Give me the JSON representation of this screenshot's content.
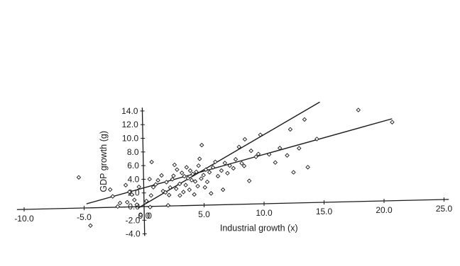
{
  "chart_data": {
    "type": "scatter",
    "title": "",
    "xlabel": "Industrial growth (x)",
    "ylabel": "GDP growth (g)",
    "xlim": [
      -10.0,
      25.0
    ],
    "ylim": [
      -4.0,
      14.0
    ],
    "x_ticks": [
      "-10.0",
      "-5.0",
      "0.0",
      "5.0",
      "10.0",
      "15.0",
      "20.0",
      "25.0"
    ],
    "y_ticks": [
      "-4.0",
      "-2.0",
      "0.0",
      "2.0",
      "4.0",
      "6.0",
      "8.0",
      "10.0",
      "12.0",
      "14.0"
    ],
    "x_tick_values": [
      -10,
      -5,
      0,
      5,
      10,
      15,
      20,
      25
    ],
    "y_tick_values": [
      -4,
      -2,
      0,
      2,
      4,
      6,
      8,
      10,
      12,
      14
    ],
    "x_zero_label": "0",
    "marker": "diamond",
    "grid": false,
    "points": [
      [
        -5.4,
        4.5
      ],
      [
        -4.5,
        -2.6
      ],
      [
        -2.8,
        2.6
      ],
      [
        -2.6,
        1.6
      ],
      [
        -2.2,
        0.1
      ],
      [
        -2.0,
        0.6
      ],
      [
        -1.5,
        3.2
      ],
      [
        -1.4,
        0.7
      ],
      [
        -1.2,
        2.2
      ],
      [
        -1.0,
        1.8
      ],
      [
        -0.8,
        1.0
      ],
      [
        -0.6,
        0.3
      ],
      [
        -0.4,
        2.9
      ],
      [
        -0.3,
        -1.2
      ],
      [
        0.2,
        0.8
      ],
      [
        0.5,
        -0.1
      ],
      [
        0.5,
        4.0
      ],
      [
        0.6,
        1.6
      ],
      [
        0.7,
        6.5
      ],
      [
        0.8,
        2.8
      ],
      [
        1.0,
        3.2
      ],
      [
        1.2,
        3.8
      ],
      [
        1.5,
        4.5
      ],
      [
        1.6,
        2.2
      ],
      [
        1.8,
        2.0
      ],
      [
        1.9,
        3.5
      ],
      [
        2.0,
        0.1
      ],
      [
        2.1,
        1.6
      ],
      [
        2.2,
        2.7
      ],
      [
        2.4,
        3.9
      ],
      [
        2.5,
        4.4
      ],
      [
        2.6,
        6.0
      ],
      [
        2.7,
        2.5
      ],
      [
        2.8,
        5.3
      ],
      [
        3.0,
        1.5
      ],
      [
        3.0,
        3.2
      ],
      [
        3.2,
        4.8
      ],
      [
        3.3,
        2.0
      ],
      [
        3.4,
        4.3
      ],
      [
        3.5,
        3.0
      ],
      [
        3.6,
        5.6
      ],
      [
        3.7,
        4.0
      ],
      [
        3.8,
        2.3
      ],
      [
        3.9,
        5.1
      ],
      [
        4.0,
        3.7
      ],
      [
        4.1,
        4.6
      ],
      [
        4.2,
        1.6
      ],
      [
        4.3,
        3.5
      ],
      [
        4.4,
        4.9
      ],
      [
        4.5,
        2.8
      ],
      [
        4.6,
        5.8
      ],
      [
        4.7,
        6.8
      ],
      [
        4.8,
        3.9
      ],
      [
        4.9,
        8.8
      ],
      [
        5.0,
        4.4
      ],
      [
        5.1,
        2.6
      ],
      [
        5.2,
        5.2
      ],
      [
        5.3,
        3.4
      ],
      [
        5.5,
        4.8
      ],
      [
        5.6,
        1.7
      ],
      [
        5.8,
        5.5
      ],
      [
        6.0,
        6.3
      ],
      [
        6.2,
        4.2
      ],
      [
        6.5,
        5.0
      ],
      [
        6.6,
        2.2
      ],
      [
        6.8,
        6.1
      ],
      [
        7.0,
        4.6
      ],
      [
        7.2,
        5.7
      ],
      [
        7.5,
        5.3
      ],
      [
        7.7,
        6.6
      ],
      [
        8.0,
        8.4
      ],
      [
        8.2,
        6.0
      ],
      [
        8.4,
        5.6
      ],
      [
        8.5,
        9.5
      ],
      [
        8.8,
        3.4
      ],
      [
        9.0,
        7.8
      ],
      [
        9.4,
        6.9
      ],
      [
        9.6,
        7.3
      ],
      [
        9.8,
        10.1
      ],
      [
        10.5,
        7.2
      ],
      [
        11.0,
        6.0
      ],
      [
        11.4,
        8.1
      ],
      [
        12.0,
        7.0
      ],
      [
        12.3,
        10.8
      ],
      [
        12.5,
        4.5
      ],
      [
        13.0,
        8.0
      ],
      [
        13.5,
        12.2
      ],
      [
        13.7,
        5.2
      ],
      [
        14.5,
        9.3
      ],
      [
        18.0,
        13.4
      ],
      [
        20.8,
        11.5
      ]
    ],
    "lines": [
      {
        "from": [
          -4.8,
          0.6
        ],
        "to": [
          20.8,
          12.0
        ]
      },
      {
        "from": [
          -0.5,
          -0.2
        ],
        "to": [
          14.8,
          14.7
        ]
      }
    ]
  }
}
